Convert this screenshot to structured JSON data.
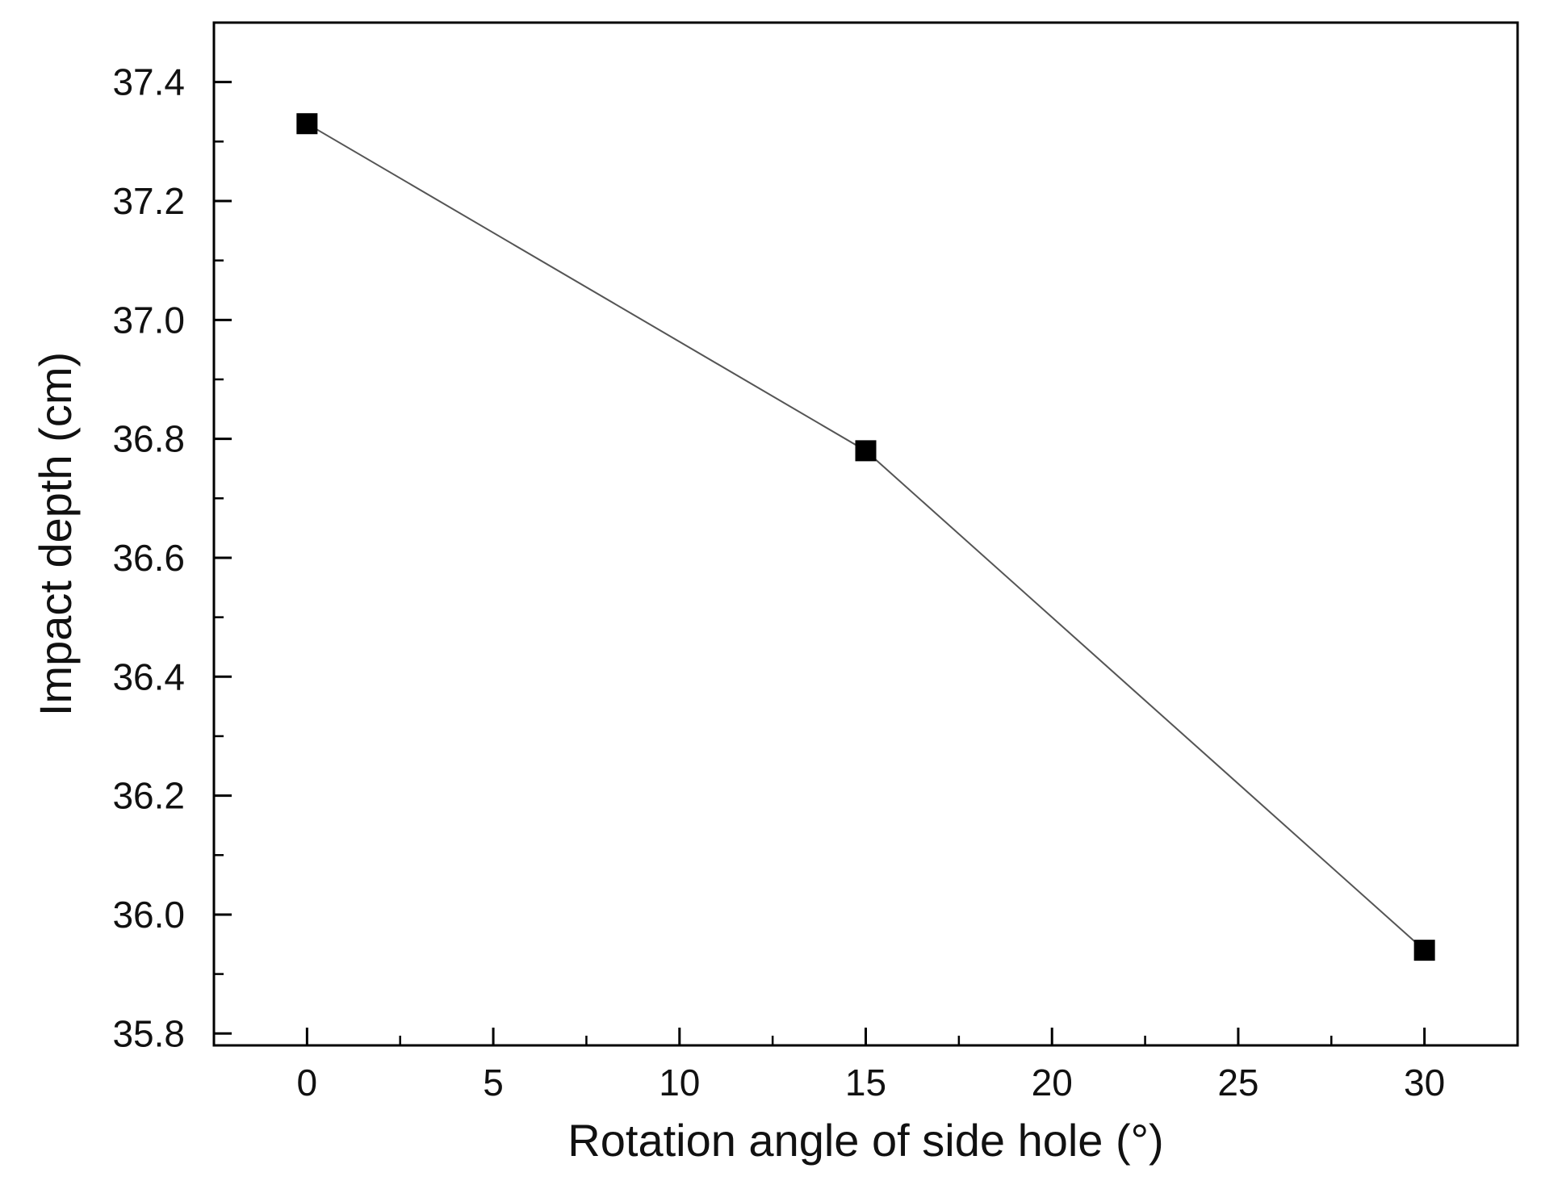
{
  "chart_data": {
    "type": "line",
    "title": "",
    "xlabel": "Rotation angle of side hole (°)",
    "ylabel": "Impact depth (cm)",
    "xlim": [
      -2.5,
      32.5
    ],
    "ylim": [
      35.78,
      37.5
    ],
    "x_ticks": [
      0,
      5,
      10,
      15,
      20,
      25,
      30
    ],
    "x_tick_labels": [
      "0",
      "5",
      "10",
      "15",
      "20",
      "25",
      "30"
    ],
    "y_ticks": [
      35.8,
      36.0,
      36.2,
      36.4,
      36.6,
      36.8,
      37.0,
      37.2,
      37.4
    ],
    "y_tick_labels": [
      "35.8",
      "36.0",
      "36.2",
      "36.4",
      "36.6",
      "36.8",
      "37.0",
      "37.2",
      "37.4"
    ],
    "grid": false,
    "legend": "none",
    "marker": "square",
    "colors": {
      "line": "#555555",
      "marker": "#000000",
      "axis": "#000000"
    },
    "series": [
      {
        "x": [
          0,
          15,
          30
        ],
        "y": [
          37.33,
          36.78,
          35.94
        ]
      }
    ]
  }
}
